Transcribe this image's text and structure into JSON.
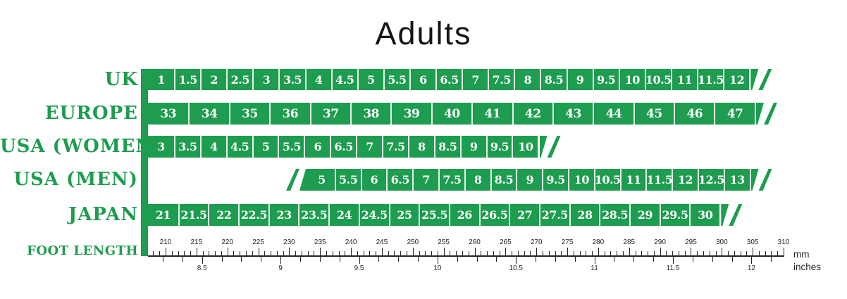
{
  "title": "Adults",
  "colors": {
    "green": "#1e9c4f",
    "bar_text": "#ffffff",
    "ruler_ink": "#222222"
  },
  "ruler": {
    "unit_top": "mm",
    "unit_bottom": "inches"
  },
  "chart_data": {
    "type": "table",
    "title": "Adults",
    "rows": [
      {
        "system": "UK",
        "sizes": [
          "1",
          "1.5",
          "2",
          "2.5",
          "3",
          "3.5",
          "4",
          "4.5",
          "5",
          "5.5",
          "6",
          "6.5",
          "7",
          "7.5",
          "8",
          "8.5",
          "9",
          "9.5",
          "10",
          "10.5",
          "11",
          "11.5",
          "12"
        ]
      },
      {
        "system": "EUROPE",
        "sizes": [
          "33",
          "34",
          "35",
          "36",
          "37",
          "38",
          "39",
          "40",
          "41",
          "42",
          "43",
          "44",
          "45",
          "46",
          "47"
        ]
      },
      {
        "system": "USA (WOMEN)",
        "sizes": [
          "3",
          "3.5",
          "4",
          "4.5",
          "5",
          "5.5",
          "6",
          "6.5",
          "7",
          "7.5",
          "8",
          "8.5",
          "9",
          "9.5",
          "10"
        ]
      },
      {
        "system": "USA (MEN)",
        "sizes": [
          "5",
          "5.5",
          "6",
          "6.5",
          "7",
          "7.5",
          "8",
          "8.5",
          "9",
          "9.5",
          "10",
          "10.5",
          "11",
          "11.5",
          "12",
          "12.5",
          "13"
        ]
      },
      {
        "system": "JAPAN",
        "sizes": [
          "21",
          "21.5",
          "22",
          "22.5",
          "23",
          "23.5",
          "24",
          "24.5",
          "25",
          "25.5",
          "26",
          "26.5",
          "27",
          "27.5",
          "28",
          "28.5",
          "29",
          "29.5",
          "30"
        ]
      }
    ],
    "foot_length_axis": {
      "label": "FOOT LENGTH",
      "mm_range": [
        208,
        310
      ],
      "mm_ticks_labeled": [
        210,
        215,
        220,
        225,
        230,
        235,
        240,
        245,
        250,
        255,
        260,
        265,
        270,
        275,
        280,
        285,
        290,
        295,
        300,
        305,
        310
      ],
      "inch_ticks_labeled": [
        8.5,
        9,
        9.5,
        10,
        10.5,
        11,
        11.5,
        12
      ],
      "units": [
        "mm",
        "inches"
      ]
    }
  }
}
